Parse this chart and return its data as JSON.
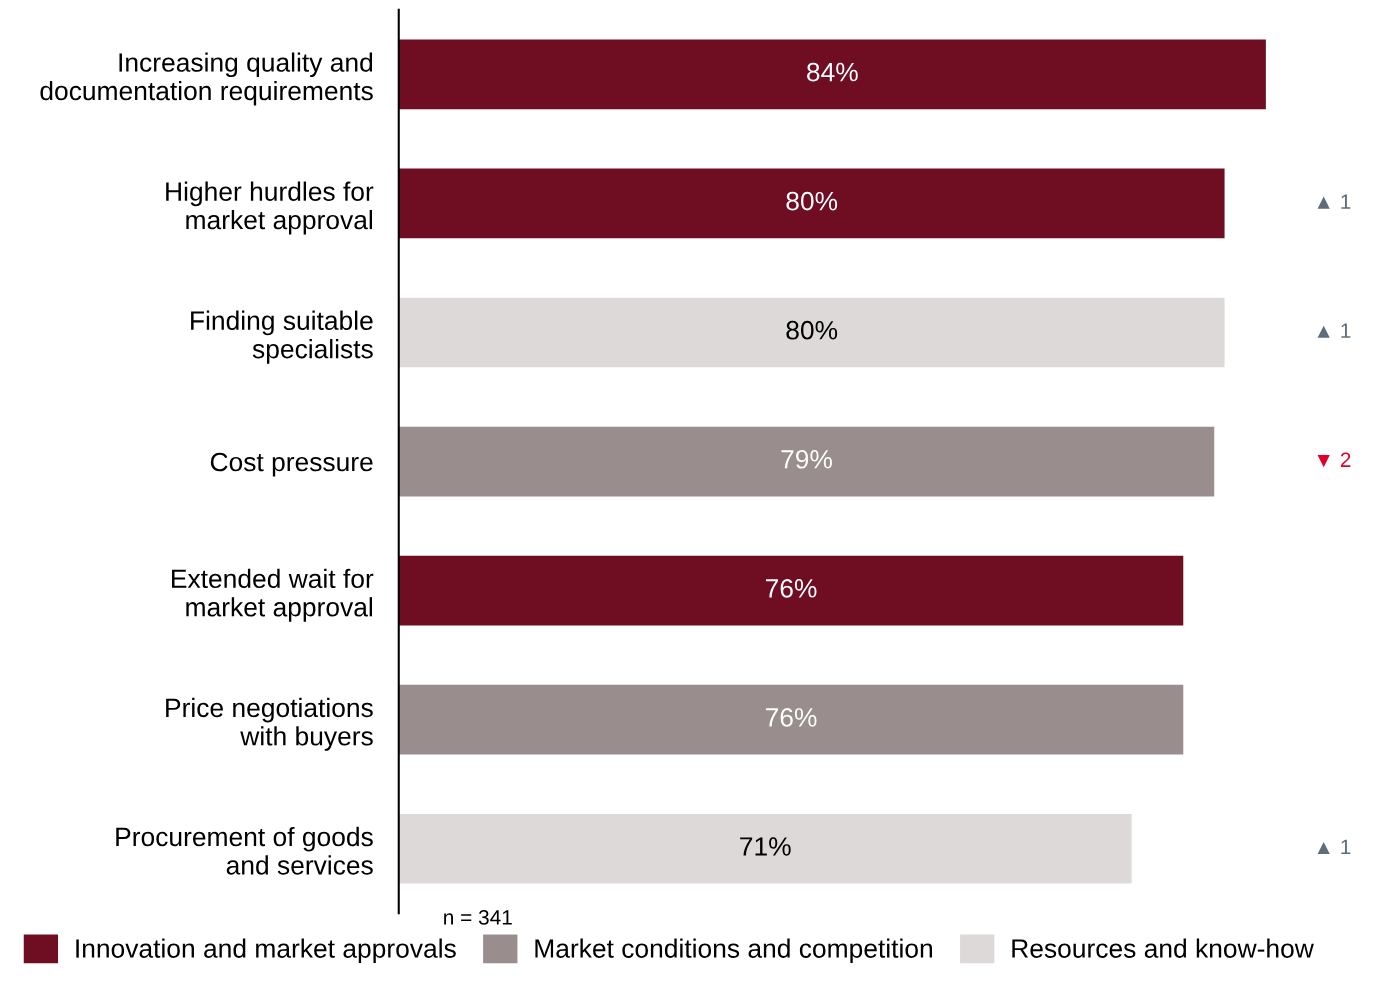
{
  "chart_data": {
    "type": "bar",
    "orientation": "horizontal",
    "categories": [
      "Increasing quality and\ndocumentation requirements",
      "Higher hurdles for\nmarket approval",
      "Finding suitable\nspecialists",
      "Cost pressure",
      "Extended wait for\nmarket approval",
      "Price negotiations\nwith buyers",
      "Procurement of goods\nand services"
    ],
    "series": [
      {
        "name": "Innovation and market approvals",
        "color": "#6f0e23",
        "values": [
          84,
          80,
          null,
          null,
          76,
          null,
          null
        ],
        "value_labels": [
          "84%",
          "80%",
          null,
          null,
          "76%",
          null,
          null
        ]
      },
      {
        "name": "Market conditions and competition",
        "color": "#9a8d8e",
        "values": [
          null,
          null,
          null,
          79,
          null,
          76,
          null
        ],
        "value_labels": [
          null,
          null,
          null,
          "79%",
          null,
          "76%",
          null
        ]
      },
      {
        "name": "Resources and know-how",
        "color": "#ddd9d9",
        "values": [
          null,
          null,
          80,
          null,
          null,
          null,
          71
        ],
        "value_labels": [
          null,
          null,
          "80%",
          null,
          null,
          null,
          "71%"
        ]
      }
    ],
    "legend": "bottom",
    "grid": false,
    "annotations": [
      "▲ 1",
      "▲ 1",
      "▼ 2",
      "▲ 1",
      "n = 341"
    ]
  }
}
